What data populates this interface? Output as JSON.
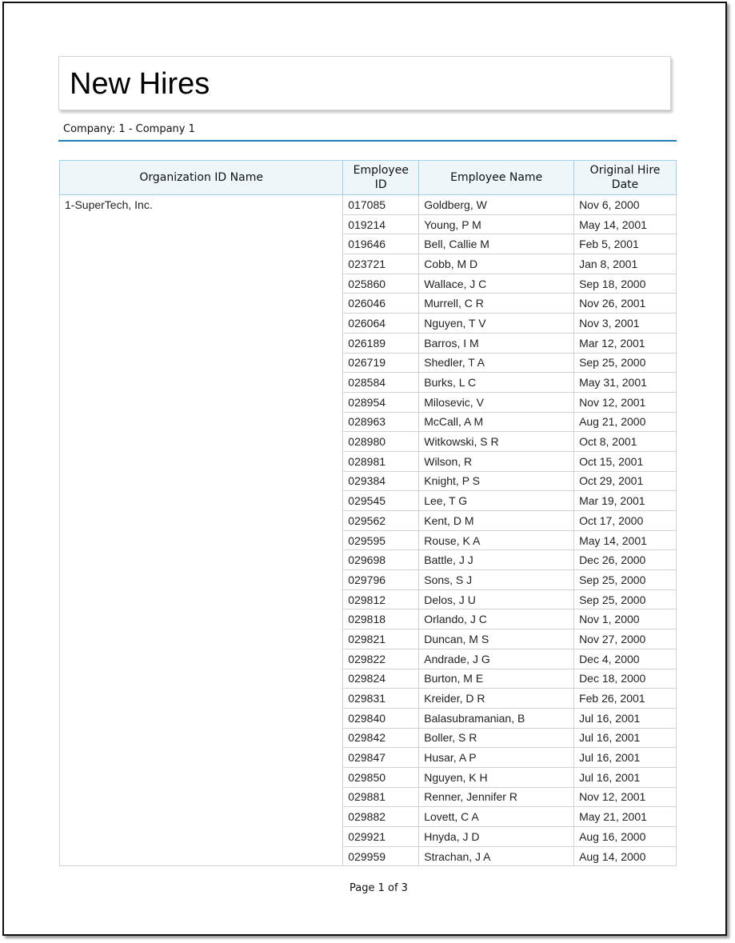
{
  "report": {
    "title": "New Hires",
    "company_line": "Company: 1 - Company 1",
    "footer": "Page 1 of 3"
  },
  "table": {
    "headers": [
      "Organization ID Name",
      "Employee ID",
      "Employee Name",
      "Original Hire Date"
    ],
    "organization": "1-SuperTech, Inc.",
    "rows": [
      [
        "017085",
        "Goldberg, W",
        "Nov 6, 2000"
      ],
      [
        "019214",
        "Young, P M",
        "May 14, 2001"
      ],
      [
        "019646",
        "Bell, Callie M",
        "Feb 5, 2001"
      ],
      [
        "023721",
        "Cobb, M D",
        "Jan 8, 2001"
      ],
      [
        "025860",
        "Wallace, J C",
        "Sep 18, 2000"
      ],
      [
        "026046",
        "Murrell, C R",
        "Nov 26, 2001"
      ],
      [
        "026064",
        "Nguyen, T V",
        "Nov 3, 2001"
      ],
      [
        "026189",
        "Barros, I M",
        "Mar 12, 2001"
      ],
      [
        "026719",
        "Shedler, T A",
        "Sep 25, 2000"
      ],
      [
        "028584",
        "Burks, L C",
        "May 31, 2001"
      ],
      [
        "028954",
        "Milosevic, V",
        "Nov 12, 2001"
      ],
      [
        "028963",
        "McCall, A M",
        "Aug 21, 2000"
      ],
      [
        "028980",
        "Witkowski, S R",
        "Oct 8, 2001"
      ],
      [
        "028981",
        "Wilson, R",
        "Oct 15, 2001"
      ],
      [
        "029384",
        "Knight, P S",
        "Oct 29, 2001"
      ],
      [
        "029545",
        "Lee, T G",
        "Mar 19, 2001"
      ],
      [
        "029562",
        "Kent, D M",
        "Oct 17, 2000"
      ],
      [
        "029595",
        "Rouse, K A",
        "May 14, 2001"
      ],
      [
        "029698",
        "Battle, J J",
        "Dec 26, 2000"
      ],
      [
        "029796",
        "Sons, S J",
        "Sep 25, 2000"
      ],
      [
        "029812",
        "Delos, J U",
        "Sep 25, 2000"
      ],
      [
        "029818",
        "Orlando, J C",
        "Nov 1, 2000"
      ],
      [
        "029821",
        "Duncan, M S",
        "Nov 27, 2000"
      ],
      [
        "029822",
        "Andrade, J G",
        "Dec 4, 2000"
      ],
      [
        "029824",
        "Burton, M E",
        "Dec 18, 2000"
      ],
      [
        "029831",
        "Kreider, D R",
        "Feb 26, 2001"
      ],
      [
        "029840",
        "Balasubramanian, B",
        "Jul 16, 2001"
      ],
      [
        "029842",
        "Boller, S R",
        "Jul 16, 2001"
      ],
      [
        "029847",
        "Husar, A P",
        "Jul 16, 2001"
      ],
      [
        "029850",
        "Nguyen, K H",
        "Jul 16, 2001"
      ],
      [
        "029881",
        "Renner, Jennifer R",
        "Nov 12, 2001"
      ],
      [
        "029882",
        "Lovett, C A",
        "May 21, 2001"
      ],
      [
        "029921",
        "Hnyda, J D",
        "Aug 16, 2000"
      ],
      [
        "029959",
        "Strachan, J A",
        "Aug 14, 2000"
      ]
    ]
  }
}
